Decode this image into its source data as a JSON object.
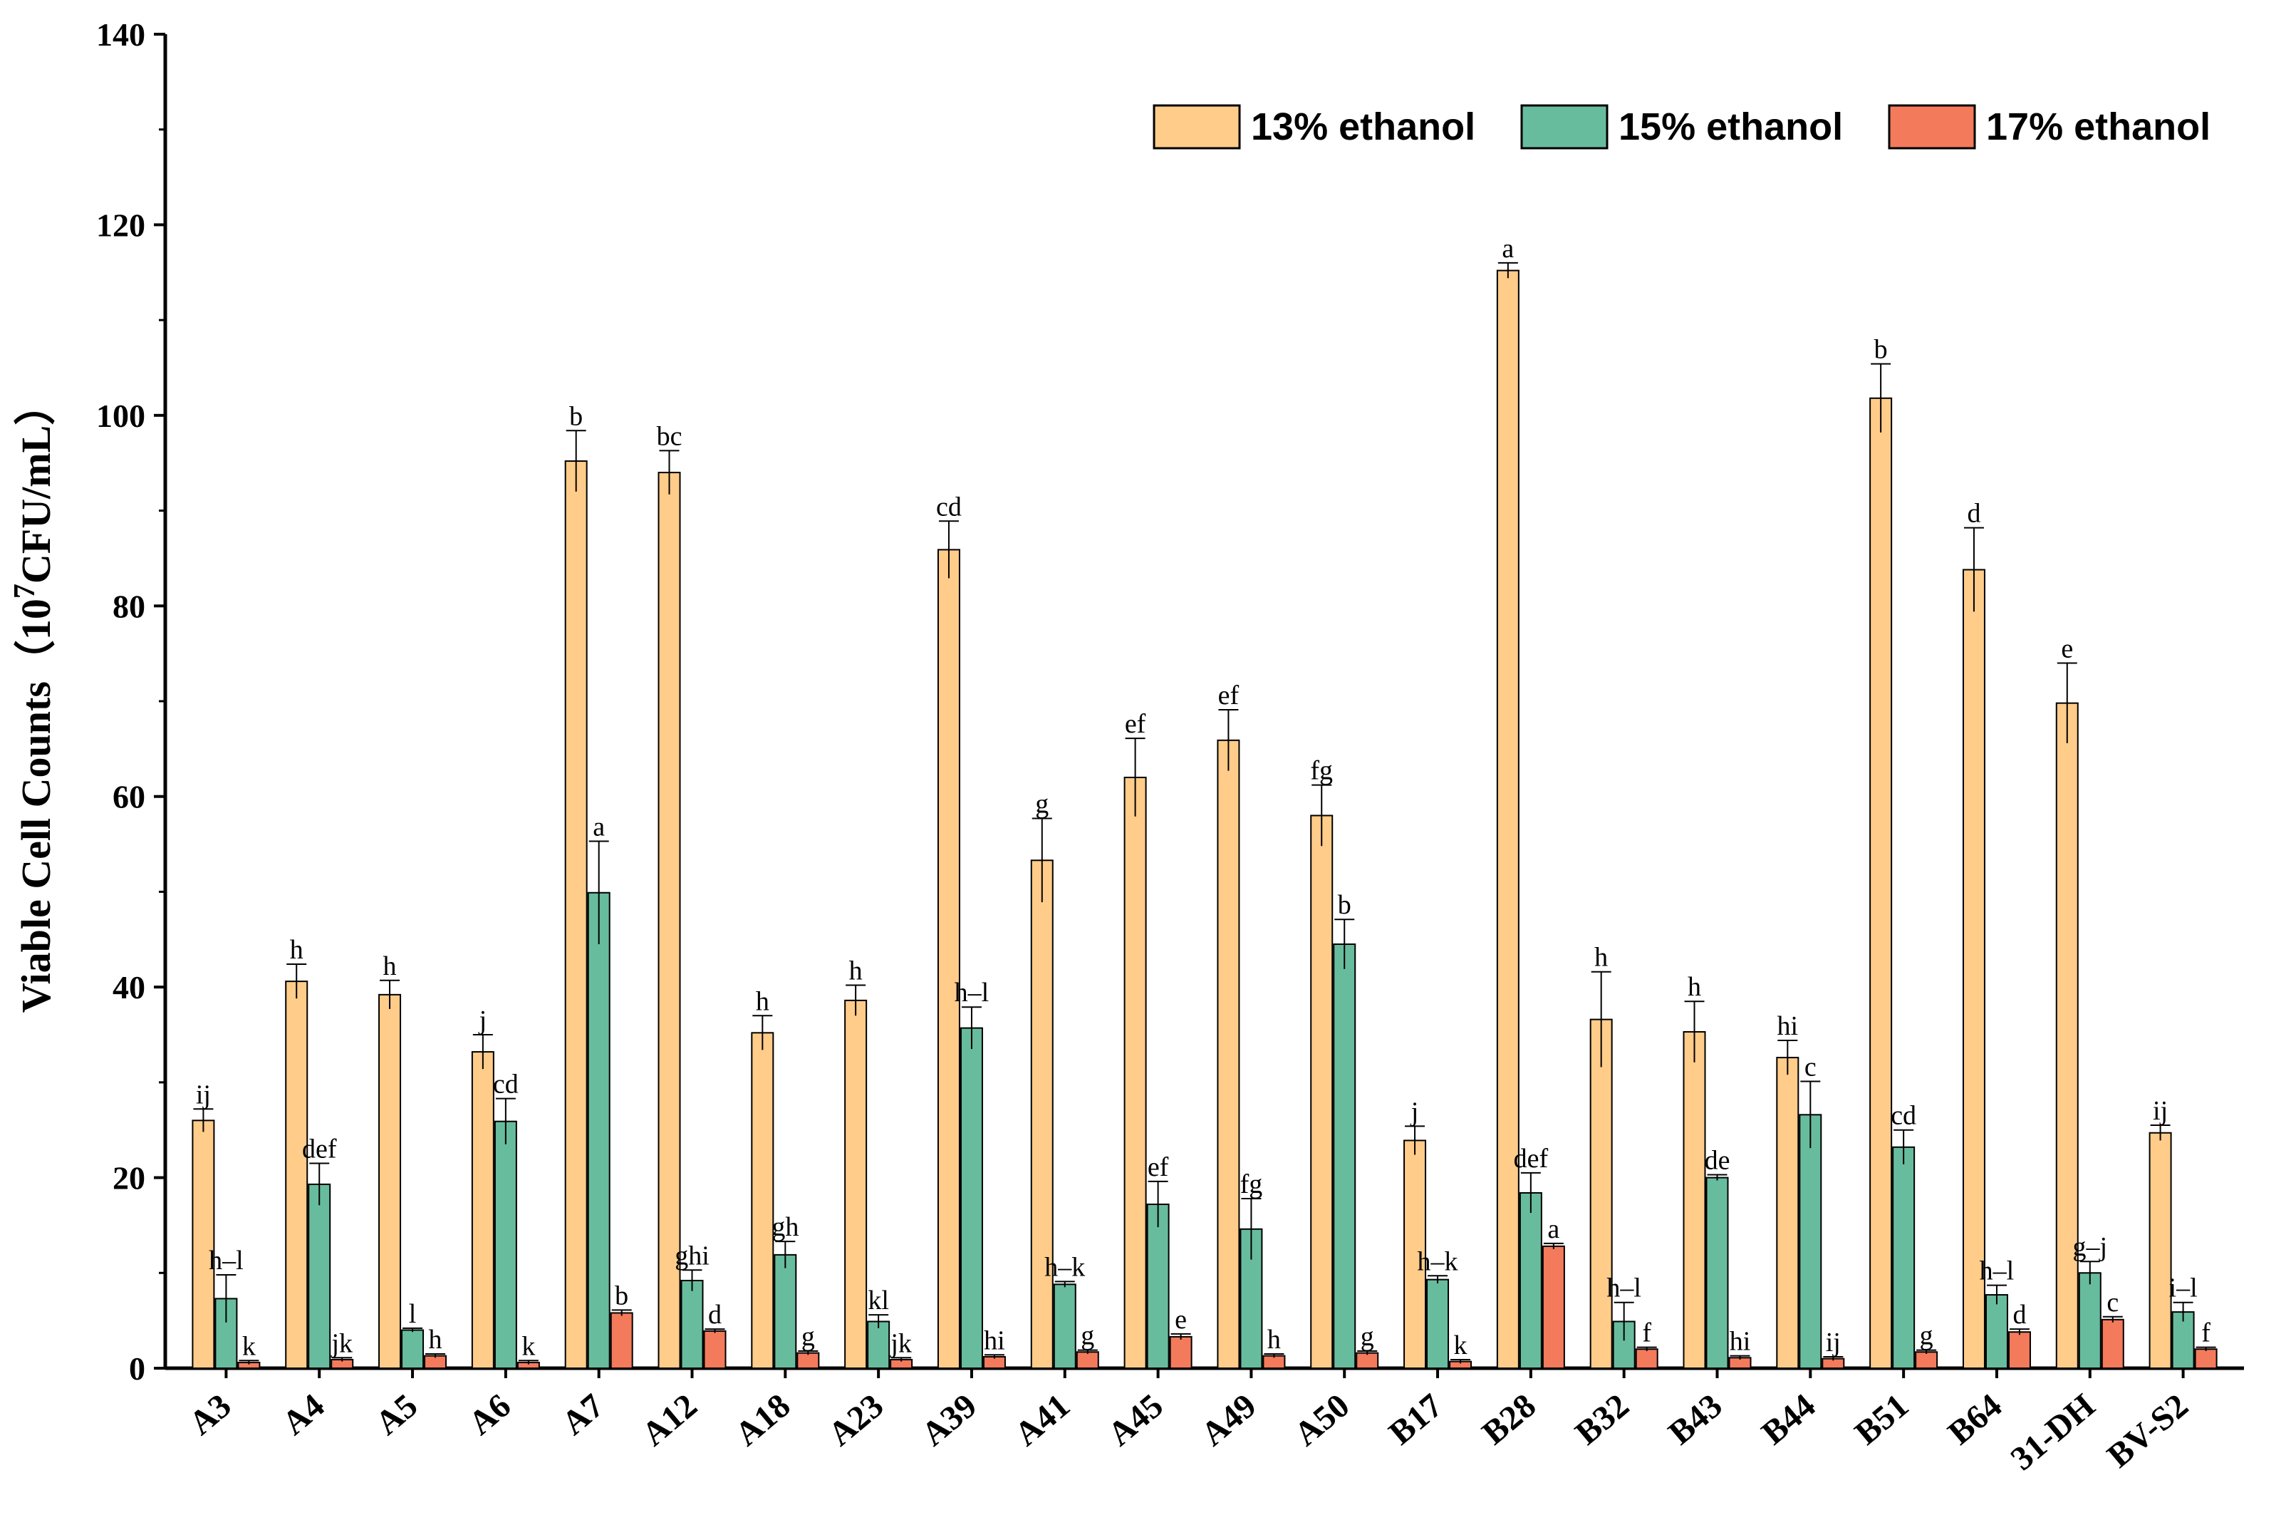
{
  "chart_data": {
    "type": "bar",
    "title": "",
    "xlabel": "",
    "ylabel": "Viable Cell Counts（10",
    "ylabel_superscript": "7",
    "ylabel_unit": "CFU/mL）",
    "ylim": [
      0,
      140
    ],
    "yticks": [
      0,
      20,
      40,
      60,
      80,
      100,
      120,
      140
    ],
    "grid": false,
    "legend_position": "top-right",
    "categories": [
      "A3",
      "A4",
      "A5",
      "A6",
      "A7",
      "A12",
      "A18",
      "A23",
      "A39",
      "A41",
      "A45",
      "A49",
      "A50",
      "B17",
      "B28",
      "B32",
      "B43",
      "B44",
      "B51",
      "B64",
      "31-DH",
      "BV-S2"
    ],
    "series": [
      {
        "name": "13% ethanol",
        "color": "#FFCC8A",
        "values": [
          26,
          40.6,
          39.2,
          33.2,
          95.2,
          94,
          35.2,
          38.6,
          85.9,
          53.3,
          62,
          65.9,
          58,
          23.9,
          115.2,
          36.6,
          35.3,
          32.6,
          101.8,
          83.8,
          69.8,
          24.7
        ],
        "errors": [
          1.2,
          1.8,
          1.5,
          1.8,
          3.2,
          2.3,
          1.8,
          1.6,
          3.0,
          4.4,
          4.1,
          3.2,
          3.2,
          1.5,
          0.8,
          5.0,
          3.2,
          1.8,
          3.6,
          4.4,
          4.2,
          0.8
        ],
        "labels": [
          "ij",
          "h",
          "h",
          "j",
          "b",
          "bc",
          "h",
          "h",
          "cd",
          "g",
          "ef",
          "ef",
          "fg",
          "j",
          "a",
          "h",
          "h",
          "hi",
          "b",
          "d",
          "e",
          "ij"
        ]
      },
      {
        "name": "15% ethanol",
        "color": "#68BC9E",
        "values": [
          7.3,
          19.3,
          4,
          25.9,
          49.9,
          9.2,
          11.9,
          4.9,
          35.7,
          8.8,
          17.2,
          14.6,
          44.5,
          9.3,
          18.4,
          4.9,
          20,
          26.6,
          23.2,
          7.7,
          10,
          5.9
        ],
        "errors": [
          2.5,
          2.2,
          0.2,
          2.4,
          5.4,
          1.1,
          1.4,
          0.7,
          2.2,
          0.3,
          2.4,
          3.2,
          2.6,
          0.4,
          2.1,
          2.0,
          0.3,
          3.5,
          1.8,
          1.0,
          1.2,
          1.0
        ],
        "labels": [
          "h–l",
          "def",
          "l",
          "cd",
          "a",
          "ghi",
          "gh",
          "kl",
          "h–l",
          "h–k",
          "ef",
          "fg",
          "b",
          "h–k",
          "def",
          "h–l",
          "de",
          "c",
          "cd",
          "h–l",
          "g–j",
          "i–l"
        ]
      },
      {
        "name": "17% ethanol",
        "color": "#F47A5C",
        "values": [
          0.6,
          0.9,
          1.3,
          0.6,
          5.8,
          3.9,
          1.6,
          0.9,
          1.2,
          1.7,
          3.3,
          1.3,
          1.6,
          0.7,
          12.8,
          2.0,
          1.1,
          1.0,
          1.7,
          3.8,
          5.1,
          2.0
        ],
        "errors": [
          0.2,
          0.2,
          0.2,
          0.2,
          0.3,
          0.2,
          0.2,
          0.2,
          0.2,
          0.2,
          0.3,
          0.2,
          0.2,
          0.2,
          0.3,
          0.2,
          0.2,
          0.2,
          0.2,
          0.3,
          0.3,
          0.2
        ],
        "labels": [
          "k",
          "jk",
          "h",
          "k",
          "b",
          "d",
          "g",
          "jk",
          "hi",
          "g",
          "e",
          "h",
          "g",
          "k",
          "a",
          "f",
          "hi",
          "ij",
          "g",
          "d",
          "c",
          "f"
        ]
      }
    ]
  }
}
